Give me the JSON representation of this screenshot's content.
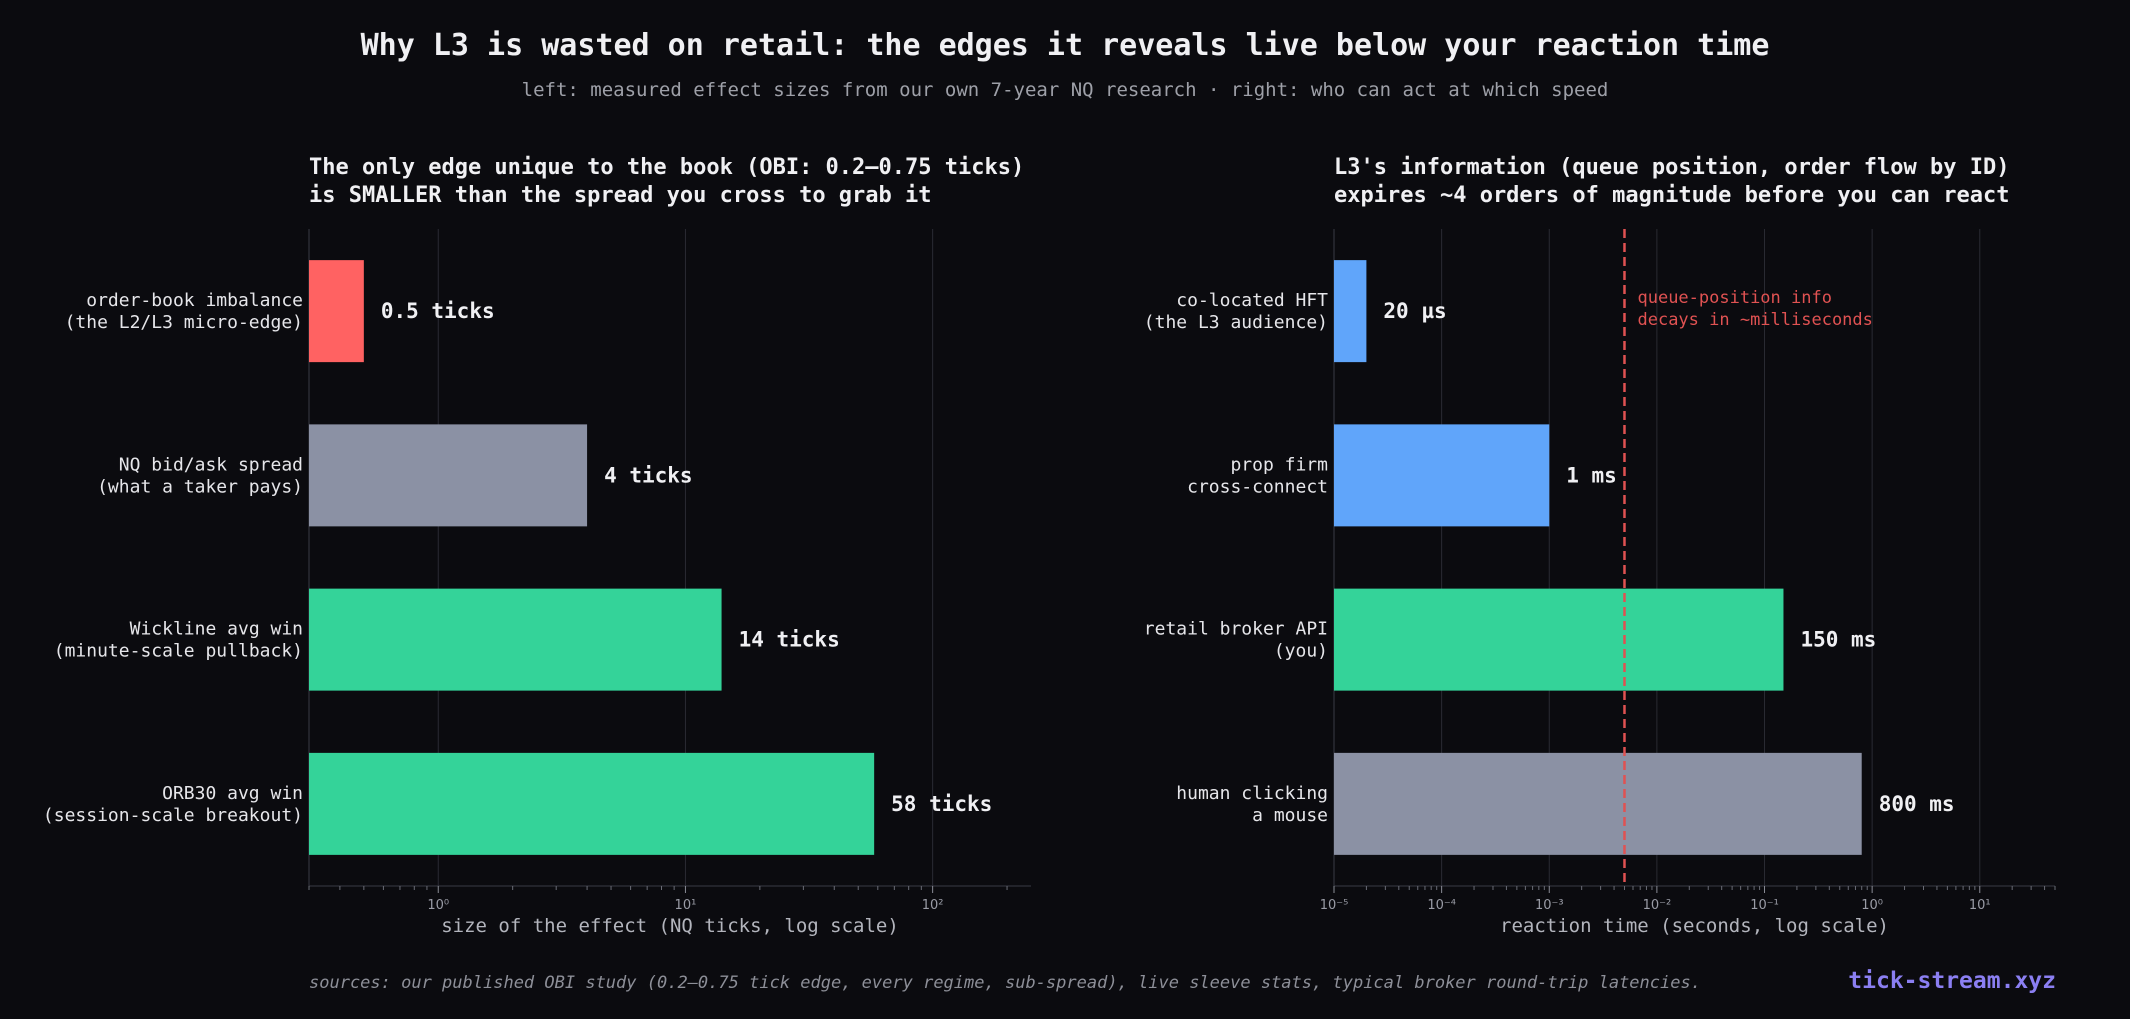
{
  "title": "Why L3 is wasted on retail: the edges it reveals live below your reaction time",
  "subtitle": "left: measured effect sizes from our own 7-year NQ research · right: who can act at which speed",
  "footer": "sources: our published OBI study (0.2–0.75 tick edge, every regime, sub-spread), live sleeve stats, typical broker round-trip latencies.",
  "brand": "tick-stream.xyz",
  "colors": {
    "background": "#0b0b0f",
    "red": "#ff6262",
    "gray": "#8b91a4",
    "green": "#34d399",
    "blue": "#60a5fa",
    "refline": "#e05252",
    "brand": "#8b7ff2"
  },
  "chart_data": [
    {
      "type": "bar",
      "orientation": "horizontal",
      "title": "The only edge unique to the book (OBI: 0.2–0.75 ticks)\nis SMALLER than the spread you cross to grab it",
      "xlabel": "size of the effect (NQ ticks, log scale)",
      "xscale": "log",
      "xlim": [
        0.3,
        250
      ],
      "grid": true,
      "ticks": [
        {
          "label": "10⁰",
          "value": 1
        },
        {
          "label": "10¹",
          "value": 10
        },
        {
          "label": "10²",
          "value": 100
        }
      ],
      "bars": [
        {
          "label": "order-book imbalance\n(the L2/L3 micro-edge)",
          "value": 0.5,
          "value_label": "0.5 ticks",
          "color": "red"
        },
        {
          "label": "NQ bid/ask spread\n(what a taker pays)",
          "value": 4,
          "value_label": "4 ticks",
          "color": "gray"
        },
        {
          "label": "Wickline avg win\n(minute-scale pullback)",
          "value": 14,
          "value_label": "14 ticks",
          "color": "green"
        },
        {
          "label": "ORB30 avg win\n(session-scale breakout)",
          "value": 58,
          "value_label": "58 ticks",
          "color": "green"
        }
      ]
    },
    {
      "type": "bar",
      "orientation": "horizontal",
      "title": "L3's information (queue position, order flow by ID)\nexpires ~4 orders of magnitude before you can react",
      "xlabel": "reaction time (seconds, log scale)",
      "xscale": "log",
      "xlim": [
        1e-05,
        50
      ],
      "grid": true,
      "ticks": [
        {
          "label": "10⁻⁵",
          "value": 1e-05
        },
        {
          "label": "10⁻⁴",
          "value": 0.0001
        },
        {
          "label": "10⁻³",
          "value": 0.001
        },
        {
          "label": "10⁻²",
          "value": 0.01
        },
        {
          "label": "10⁻¹",
          "value": 0.1
        },
        {
          "label": "10⁰",
          "value": 1
        },
        {
          "label": "10¹",
          "value": 10
        }
      ],
      "bars": [
        {
          "label": "co-located HFT\n(the L3 audience)",
          "value": 2e-05,
          "value_label": "20 µs",
          "color": "blue"
        },
        {
          "label": "prop firm\ncross-connect",
          "value": 0.001,
          "value_label": "1 ms",
          "color": "blue"
        },
        {
          "label": "retail broker API\n(you)",
          "value": 0.15,
          "value_label": "150 ms",
          "color": "green"
        },
        {
          "label": "human clicking\na mouse",
          "value": 0.8,
          "value_label": "800 ms",
          "color": "gray"
        }
      ],
      "reference_line": {
        "value": 0.005,
        "annotation": "queue-position info\ndecays in ~milliseconds"
      }
    }
  ]
}
